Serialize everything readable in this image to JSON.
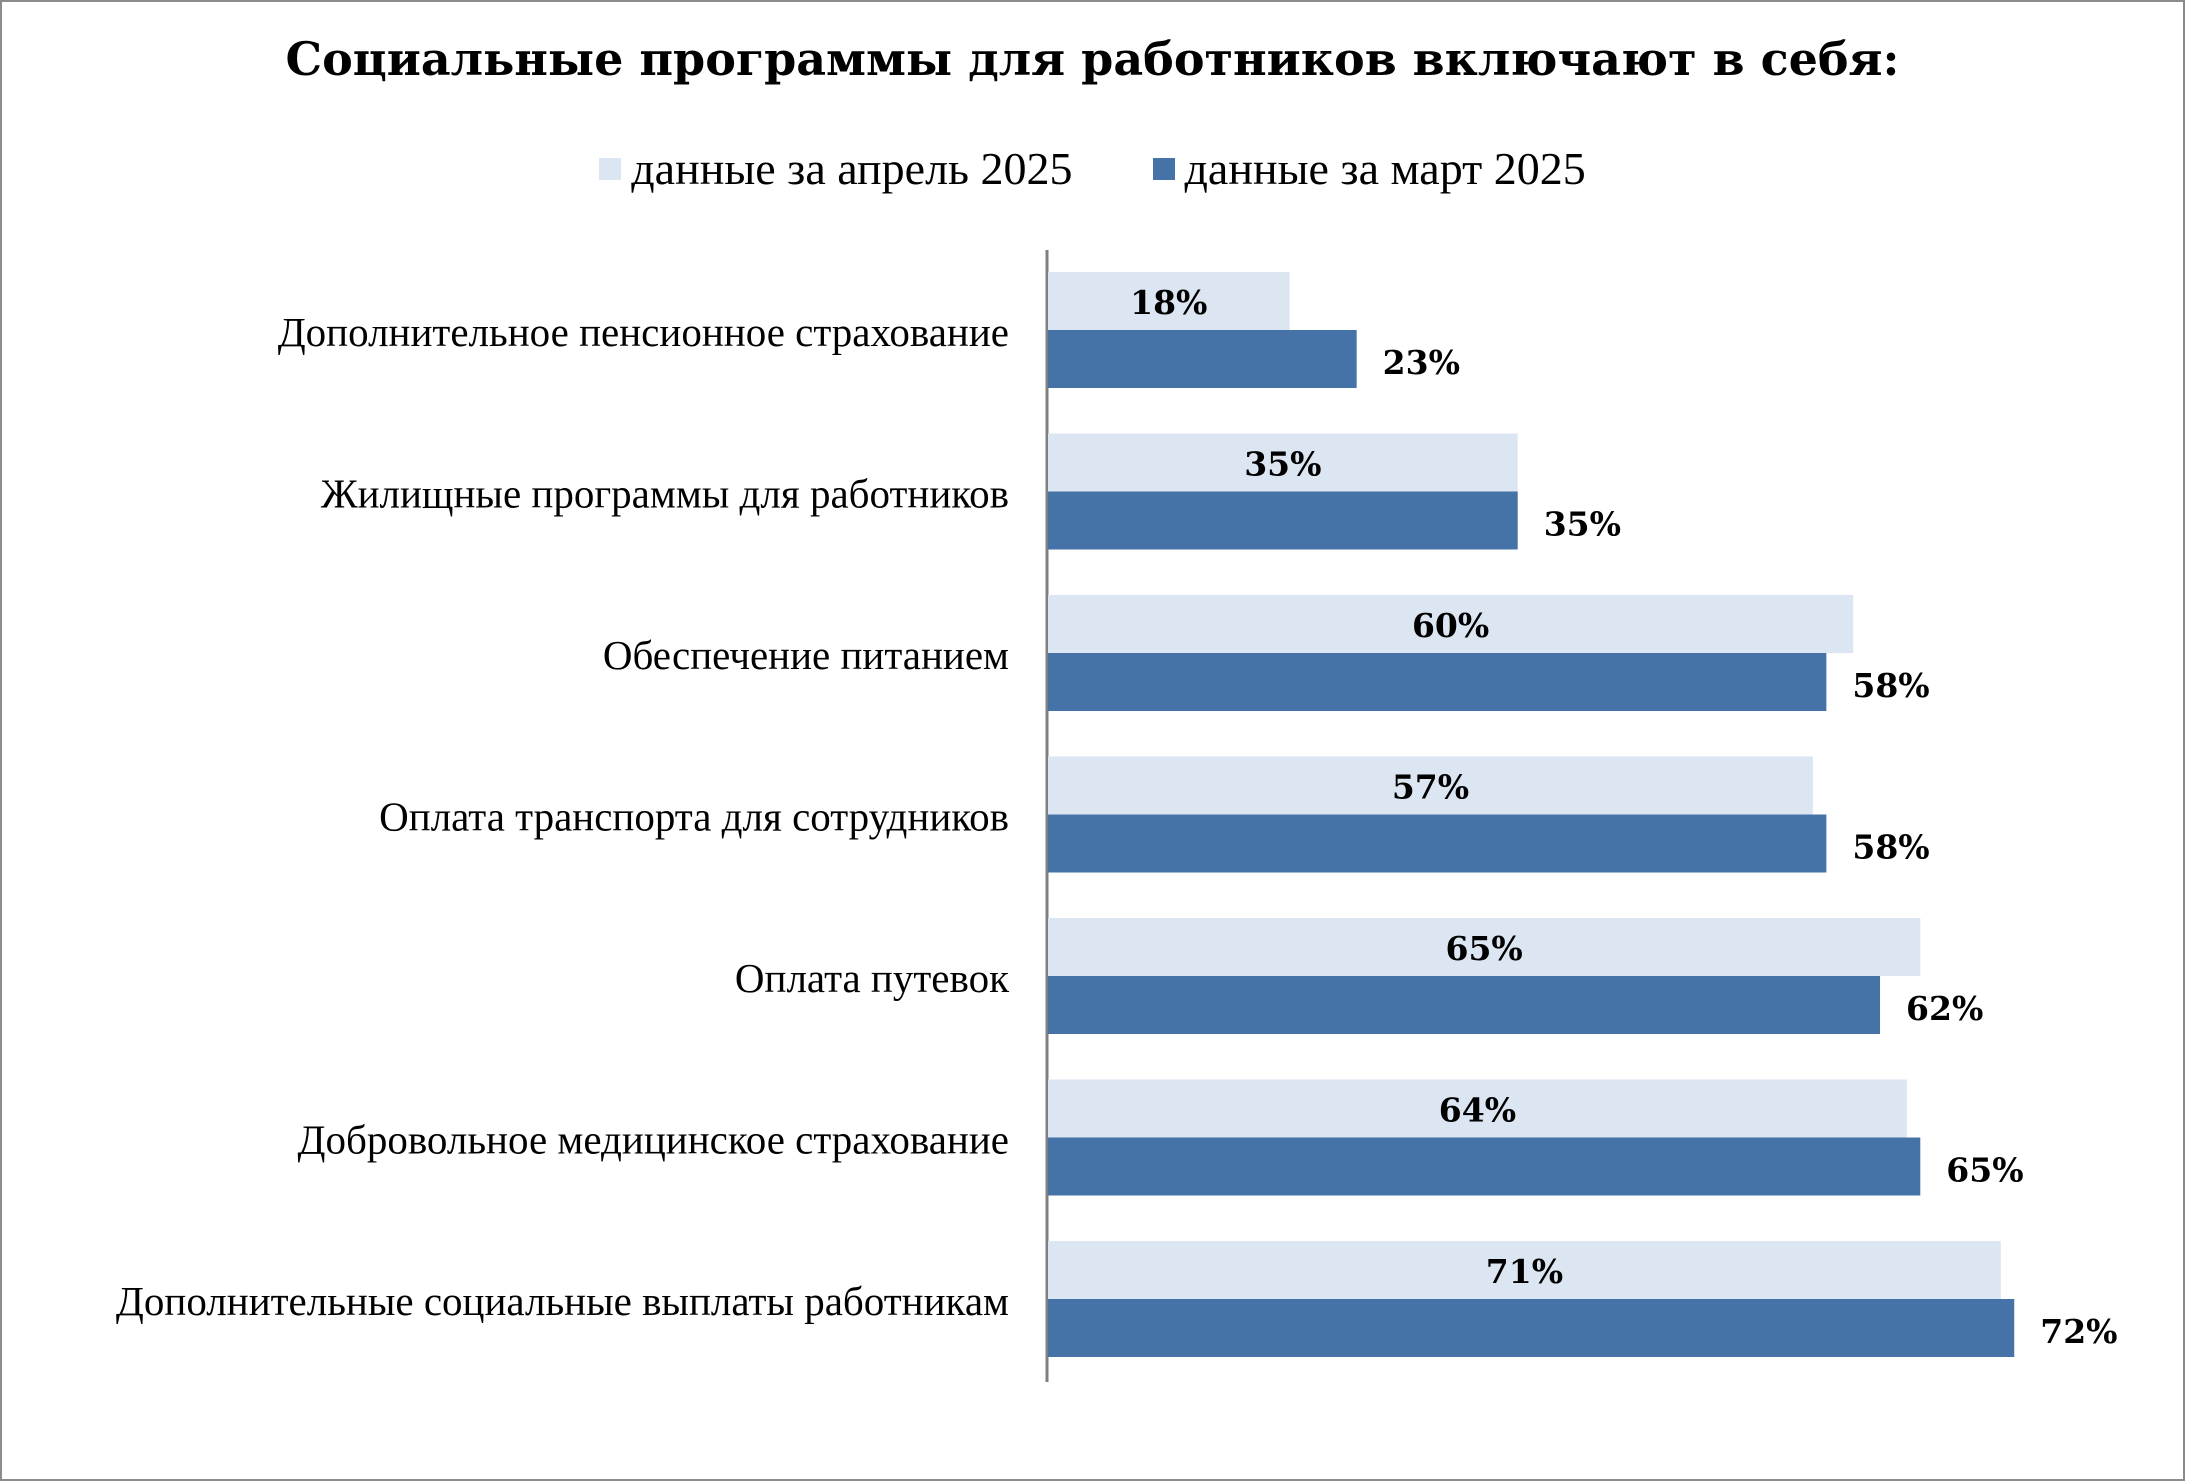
{
  "chart_data": {
    "type": "bar",
    "orientation": "horizontal",
    "title": "Социальные программы для работников включают в себя:",
    "categories": [
      "Дополнительное пенсионное страхование",
      "Жилищные программы для работников",
      "Обеспечение питанием",
      "Оплата транспорта для сотрудников",
      "Оплата путевок",
      "Добровольное медицинское страхование",
      "Дополнительные социальные выплаты работникам"
    ],
    "series": [
      {
        "name": "данные за апрель 2025",
        "color": "#dce6f2",
        "values": [
          18,
          35,
          60,
          57,
          65,
          64,
          71
        ],
        "labels": [
          "18%",
          "35%",
          "60%",
          "57%",
          "65%",
          "64%",
          "71%"
        ]
      },
      {
        "name": "данные за март 2025",
        "color": "#4572a7",
        "values": [
          23,
          35,
          58,
          58,
          62,
          65,
          72
        ],
        "labels": [
          "23%",
          "35%",
          "58%",
          "58%",
          "62%",
          "65%",
          "72%"
        ]
      }
    ],
    "xlim": [
      0,
      80
    ],
    "grid": false,
    "legend_position": "top"
  }
}
